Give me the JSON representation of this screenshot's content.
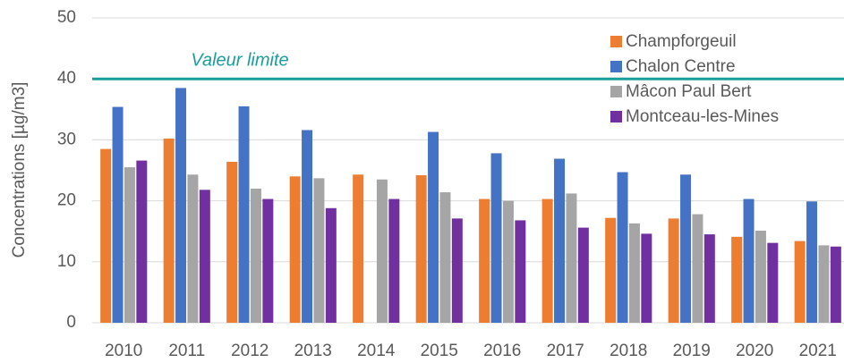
{
  "chart_data": {
    "type": "bar",
    "y_label": "Concentrations [µg/m3]",
    "categories": [
      "2010",
      "2011",
      "2012",
      "2013",
      "2014",
      "2015",
      "2016",
      "2017",
      "2018",
      "2019",
      "2020",
      "2021"
    ],
    "series": [
      {
        "name": "Champforgeuil",
        "color": "#ed7d31",
        "values": [
          28.5,
          30.2,
          26.4,
          24.0,
          24.3,
          24.2,
          20.3,
          20.3,
          17.2,
          17.1,
          14.1,
          13.4
        ]
      },
      {
        "name": "Chalon Centre",
        "color": "#4472c4",
        "values": [
          35.4,
          38.5,
          35.5,
          31.6,
          null,
          31.3,
          27.8,
          26.9,
          24.7,
          24.3,
          20.3,
          19.9
        ]
      },
      {
        "name": "Mâcon Paul Bert",
        "color": "#a5a5a5",
        "values": [
          25.5,
          24.3,
          22.0,
          23.7,
          23.5,
          21.4,
          20.0,
          21.2,
          16.3,
          17.8,
          15.1,
          12.7
        ]
      },
      {
        "name": "Montceau-les-Mines",
        "color": "#7030a0",
        "values": [
          26.6,
          21.8,
          20.3,
          18.8,
          20.3,
          17.1,
          16.8,
          15.6,
          14.6,
          14.5,
          13.1,
          12.5
        ]
      }
    ],
    "limit": {
      "value": 40,
      "label": "Valeur limite",
      "color": "#1a9e9a"
    },
    "ylim": [
      0,
      50
    ],
    "yticks": [
      0,
      10,
      20,
      30,
      40,
      50
    ],
    "grid": true,
    "legend": "top-right"
  }
}
